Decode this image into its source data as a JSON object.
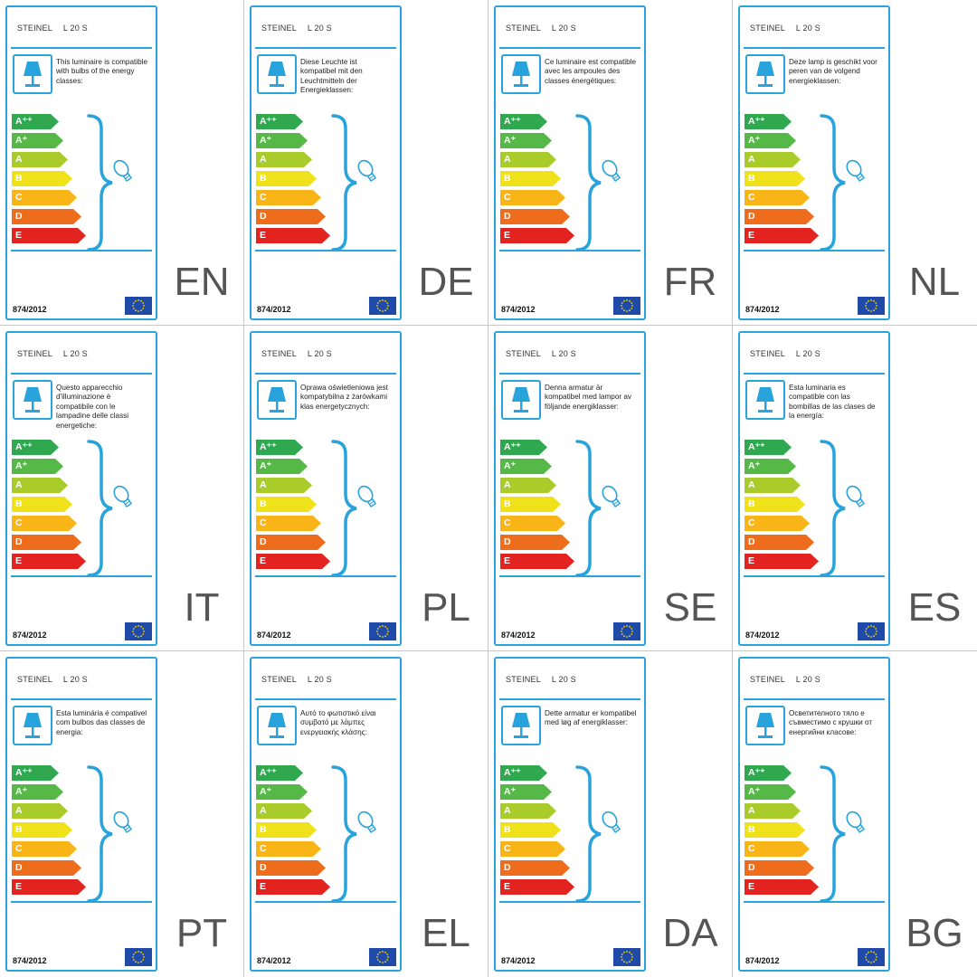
{
  "colors": {
    "frame": "#29a3dc",
    "lang_text": "#555555",
    "eu_blue": "#1f4aa8",
    "eu_star": "#ffdd00"
  },
  "energy_classes": [
    {
      "label": "A⁺⁺",
      "color": "#2fa84f"
    },
    {
      "label": "A⁺",
      "color": "#56b847"
    },
    {
      "label": "A",
      "color": "#a9cc2b"
    },
    {
      "label": "B",
      "color": "#f0e21a"
    },
    {
      "label": "C",
      "color": "#f9b417"
    },
    {
      "label": "D",
      "color": "#ed6d1c"
    },
    {
      "label": "E",
      "color": "#e3231f"
    }
  ],
  "labels": [
    {
      "brand": "STEINEL",
      "model": "L 20 S",
      "text": "This luminaire is compatible with bulbs of the energy classes:",
      "regulation": "874/2012",
      "lang": "EN"
    },
    {
      "brand": "STEINEL",
      "model": "L 20 S",
      "text": "Diese Leuchte ist kompatibel mit den Leuchtmitteln der Energieklassen:",
      "regulation": "874/2012",
      "lang": "DE"
    },
    {
      "brand": "STEINEL",
      "model": "L 20 S",
      "text": "Ce luminaire est compatible avec les ampoules des classes énergétiques:",
      "regulation": "874/2012",
      "lang": "FR"
    },
    {
      "brand": "STEINEL",
      "model": "L 20 S",
      "text": "Deze lamp is geschikt voor peren van de volgend energieklassen:",
      "regulation": "874/2012",
      "lang": "NL"
    },
    {
      "brand": "STEINEL",
      "model": "L 20 S",
      "text": "Questo apparecchio d'illuminazione è compatibile con le lampadine delle classi energetiche:",
      "regulation": "874/2012",
      "lang": "IT"
    },
    {
      "brand": "STEINEL",
      "model": "L 20 S",
      "text": "Oprawa oświetleniowa jest kompatybilna z żarówkami klas energetycznych:",
      "regulation": "874/2012",
      "lang": "PL"
    },
    {
      "brand": "STEINEL",
      "model": "L 20 S",
      "text": "Denna armatur är kompatibel med lampor av följande energiklasser:",
      "regulation": "874/2012",
      "lang": "SE"
    },
    {
      "brand": "STEINEL",
      "model": "L 20 S",
      "text": "Esta luminaria es compatible con las bombillas de las clases de la energía:",
      "regulation": "874/2012",
      "lang": "ES"
    },
    {
      "brand": "STEINEL",
      "model": "L 20 S",
      "text": "Esta luminária é compativel com bulbos das classes de energia:",
      "regulation": "874/2012",
      "lang": "PT"
    },
    {
      "brand": "STEINEL",
      "model": "L 20 S",
      "text": "Αυτό το φωτιστικό είναι συμβατό με λάμπες ενεργειακής κλάσης:",
      "regulation": "874/2012",
      "lang": "EL"
    },
    {
      "brand": "STEINEL",
      "model": "L 20 S",
      "text": "Dette armatur er kompatibel med løg af energiklasser:",
      "regulation": "874/2012",
      "lang": "DA"
    },
    {
      "brand": "STEINEL",
      "model": "L 20 S",
      "text": "Осветителното тяло е съвместимо с крушки от енергийни класове:",
      "regulation": "874/2012",
      "lang": "BG"
    }
  ]
}
